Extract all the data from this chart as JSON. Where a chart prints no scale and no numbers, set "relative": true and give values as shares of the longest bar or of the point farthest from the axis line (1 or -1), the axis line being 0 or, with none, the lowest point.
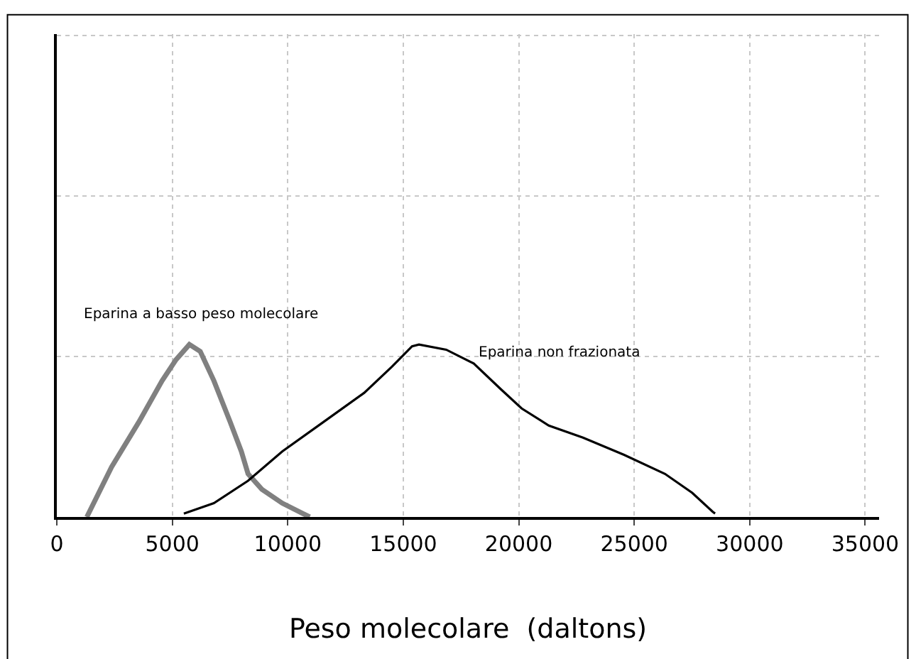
{
  "chart_data": {
    "type": "line",
    "relative": true,
    "xlabel": "Peso molecolare  (daltons)",
    "xlim": [
      0,
      35600
    ],
    "xticks": [
      0,
      5000,
      10000,
      15000,
      20000,
      25000,
      30000,
      35000
    ],
    "grid": true,
    "legend": false,
    "tick_labels": "x",
    "marker": "none",
    "line_style": "solid",
    "series": [
      {
        "name": "Eparina a basso peso molecolare",
        "color": "#808080",
        "x": [
          1300,
          2370,
          3550,
          4560,
          5150,
          5740,
          6210,
          6800,
          7510,
          7990,
          8280,
          8880,
          9760,
          10650,
          10950
        ],
        "values": [
          0,
          0.29,
          0.55,
          0.79,
          0.91,
          1.0,
          0.96,
          0.79,
          0.55,
          0.38,
          0.25,
          0.16,
          0.08,
          0.02,
          0
        ]
      },
      {
        "name": "Eparina non frazionata",
        "color": "#000000",
        "x": [
          5500,
          6800,
          8280,
          9760,
          11540,
          13310,
          14500,
          15380,
          15680,
          16860,
          18050,
          19230,
          20120,
          21300,
          22780,
          24560,
          26330,
          27510,
          28400,
          28500
        ],
        "values": [
          0.02,
          0.08,
          0.21,
          0.38,
          0.55,
          0.72,
          0.87,
          0.99,
          1.0,
          0.97,
          0.89,
          0.74,
          0.63,
          0.53,
          0.46,
          0.36,
          0.25,
          0.14,
          0.03,
          0.02
        ]
      }
    ]
  }
}
